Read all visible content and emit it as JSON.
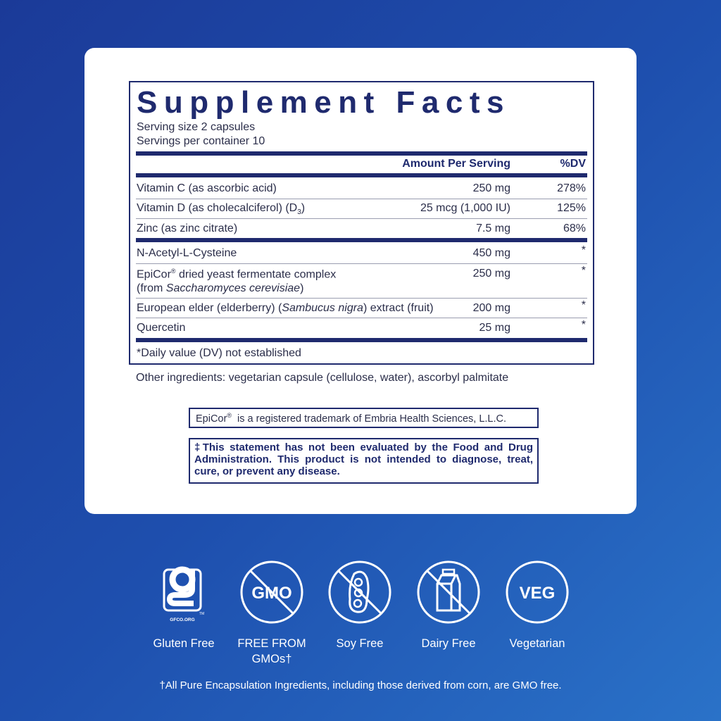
{
  "facts": {
    "title": "Supplement Facts",
    "serving_size": "Serving size  2 capsules",
    "servings_per_container": "Servings per container  10",
    "header_amount": "Amount Per Serving",
    "header_dv": "%DV",
    "rows": [
      {
        "name": "Vitamin C (as ascorbic acid)",
        "amount": "250 mg",
        "dv": "278%"
      },
      {
        "name": "Vitamin D (as cholecalciferol) (D",
        "sub": "3",
        "name_end": ")",
        "amount": "25 mcg (1,000 IU)",
        "dv": "125%"
      },
      {
        "name": "Zinc (as zinc citrate)",
        "amount": "7.5 mg",
        "dv": "68%"
      },
      {
        "name": "N-Acetyl-L-Cysteine",
        "amount": "450 mg",
        "dv": "*"
      },
      {
        "name": "EpiCor",
        "reg": "®",
        "name_rest": " dried yeast fermentate complex",
        "line2_pre": "(from ",
        "line2_ital": "Saccharomyces cerevisiae",
        "line2_post": ")",
        "amount": "250 mg",
        "dv": "*"
      },
      {
        "name": "European elder (elderberry) (",
        "ital": "Sambucus nigra",
        "name_end": ") extract (fruit)",
        "amount": "200 mg",
        "dv": "*"
      },
      {
        "name": "Quercetin",
        "amount": "25 mg",
        "dv": "*"
      }
    ],
    "footnote": "*Daily value (DV) not established"
  },
  "other_ingredients": "Other ingredients: vegetarian capsule (cellulose, water), ascorbyl palmitate",
  "trademark": {
    "pre": "EpiCor",
    "reg": "®",
    "text": "  is a registered trademark of Embria Health Sciences, L.L.C."
  },
  "fda_statement": "‡This statement has not been evaluated by the Food and Drug Administration. This product is not intended to diagnose, treat, cure, or prevent any disease.",
  "badges": [
    {
      "icon": "gluten-free-gfco-icon",
      "icon_text": "GFCO.ORG",
      "tm": "TM",
      "label": "Gluten Free"
    },
    {
      "icon": "no-gmo-icon",
      "icon_text": "GMO",
      "label_line1": "FREE FROM",
      "label_line2": "GMOs†"
    },
    {
      "icon": "no-soy-icon",
      "label": "Soy Free"
    },
    {
      "icon": "no-dairy-icon",
      "label": "Dairy Free"
    },
    {
      "icon": "veg-icon",
      "icon_text": "VEG",
      "label": "Vegetarian"
    }
  ],
  "gmo_footnote": "†All Pure Encapsulation Ingredients, including those derived from corn, are GMO free.",
  "colors": {
    "navy": "#1f2a6e",
    "background_blue": "#1e4fae"
  }
}
